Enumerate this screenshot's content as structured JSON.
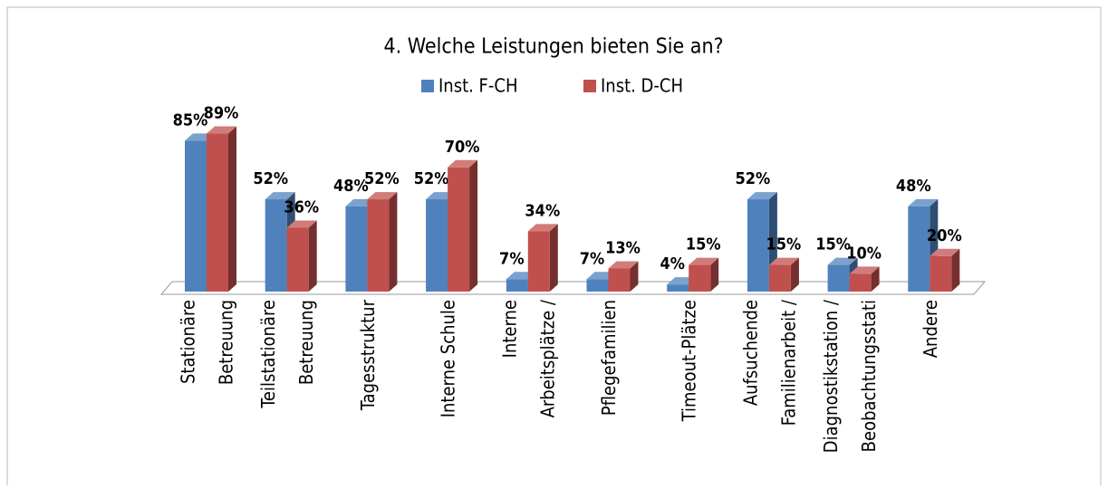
{
  "chart_data": {
    "type": "bar3d",
    "title": "4. Welche Leistungen bieten Sie an?",
    "categories": [
      [
        "Stationäre",
        "Betreuung"
      ],
      [
        "Teilstationäre",
        "Betreuung"
      ],
      [
        "Tagesstruktur"
      ],
      [
        "Interne Schule"
      ],
      [
        "Interne",
        "Arbeitsplätze /"
      ],
      [
        "Pflegefamilien"
      ],
      [
        "Timeout-Plätze"
      ],
      [
        "Aufsuchende",
        "Familienarbeit /"
      ],
      [
        "Diagnostikstation /",
        "Beobachtungsstati"
      ],
      [
        "Andere"
      ]
    ],
    "series": [
      {
        "name": "Inst. F-CH",
        "color": "#4f81bd",
        "values": [
          85,
          52,
          48,
          52,
          7,
          7,
          4,
          52,
          15,
          48
        ],
        "value_labels": [
          "85%",
          "52%",
          "48%",
          "52%",
          "7%",
          "7%",
          "4%",
          "52%",
          "15%",
          "48%"
        ]
      },
      {
        "name": "Inst. D-CH",
        "color": "#c0504d",
        "values": [
          89,
          36,
          52,
          70,
          34,
          13,
          15,
          15,
          10,
          20
        ],
        "value_labels": [
          "89%",
          "36%",
          "52%",
          "70%",
          "34%",
          "13%",
          "15%",
          "15%",
          "10%",
          "20%"
        ]
      }
    ],
    "legend": "top"
  }
}
